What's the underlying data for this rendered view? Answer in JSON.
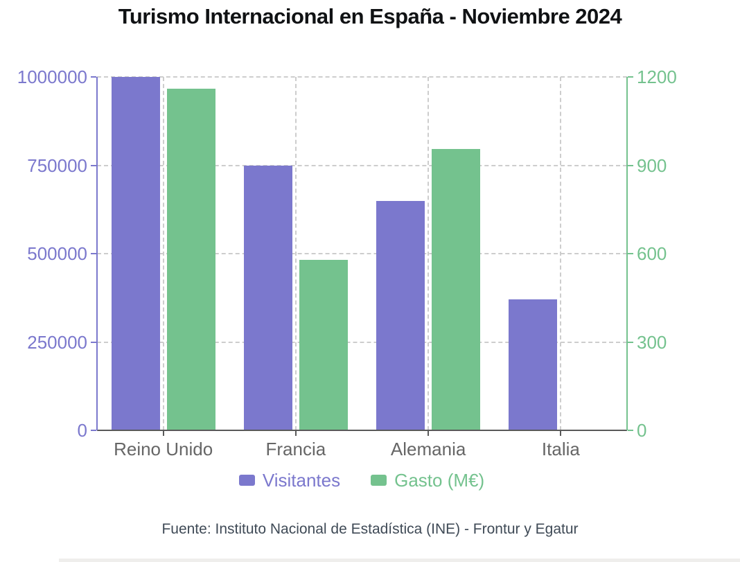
{
  "page": {
    "title": "Turismo Internacional en España - Noviembre 2024",
    "source_note": "Fuente: Instituto Nacional de Estadística (INE) - Frontur y Egatur"
  },
  "chart_data": {
    "type": "bar",
    "title": "Turismo Internacional en España - Noviembre 2024",
    "categories": [
      "Reino Unido",
      "Francia",
      "Alemania",
      "Italia"
    ],
    "series": [
      {
        "name": "Visitantes",
        "axis": "left",
        "color": "#7b78cd",
        "values": [
          1000000,
          750000,
          650000,
          370000
        ]
      },
      {
        "name": "Gasto (M€)",
        "axis": "right",
        "color": "#74c28e",
        "values": [
          1160,
          580,
          955,
          null
        ]
      }
    ],
    "left_axis": {
      "color": "#7b78cd",
      "range": [
        0,
        1000000
      ],
      "ticks": [
        0,
        250000,
        500000,
        750000,
        1000000
      ],
      "tick_labels": [
        "0",
        "250000",
        "500000",
        "750000",
        "1000000"
      ]
    },
    "right_axis": {
      "color": "#74c28e",
      "range": [
        0,
        1200
      ],
      "ticks": [
        0,
        300,
        600,
        900,
        1200
      ],
      "tick_labels": [
        "0",
        "300",
        "600",
        "900",
        "1200"
      ]
    },
    "grid": "dashed",
    "legend_position": "bottom"
  },
  "colors": {
    "visitantes": "#7b78cd",
    "gasto": "#74c28e",
    "gridline": "#cdcdcd",
    "x_axis": "#595959",
    "category_label": "#666666",
    "title_text": "#101214",
    "source_text": "#3f4a56",
    "bottom_strip": "#efeeec"
  }
}
